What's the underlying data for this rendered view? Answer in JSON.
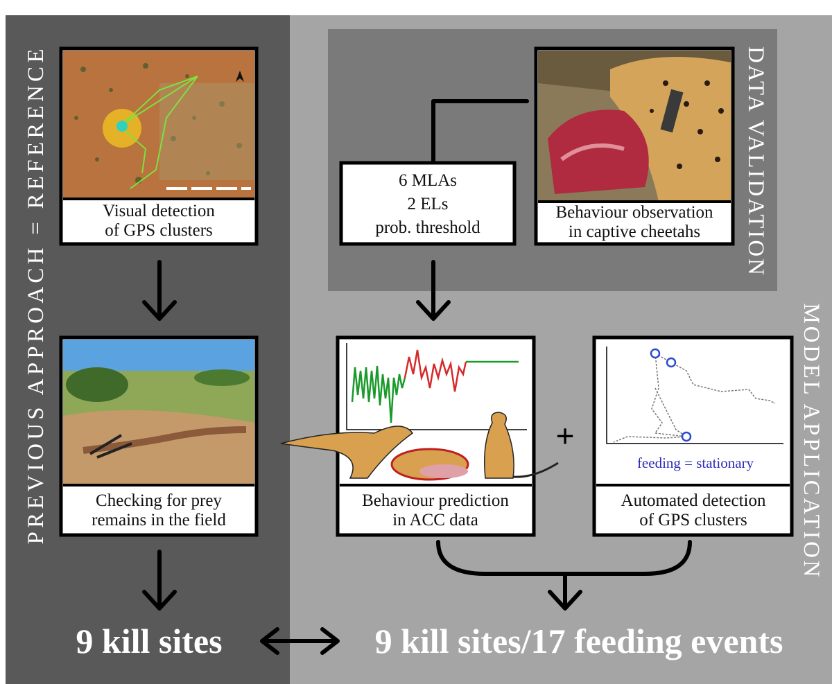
{
  "side_labels": {
    "left": "PREVIOUS APPROACH = REFERENCE",
    "data_validation": "DATA VALIDATION",
    "model_application": "MODEL APPLICATION"
  },
  "boxes": {
    "visual": [
      "Visual detection",
      "of GPS clusters"
    ],
    "prey": [
      "Checking for prey",
      "remains in the field"
    ],
    "mla": [
      "6 MLAs",
      "2 ELs",
      "prob. threshold"
    ],
    "observation": [
      "Behaviour observation",
      "in captive cheetahs"
    ],
    "prediction": [
      "Behaviour prediction",
      "in ACC data"
    ],
    "automated": [
      "Automated detection",
      "of GPS clusters"
    ]
  },
  "gps_plot_label": "feeding = stationary",
  "plus": "+",
  "outcomes": {
    "left": "9 kill sites",
    "right": "9 kill sites/17 feeding events"
  }
}
